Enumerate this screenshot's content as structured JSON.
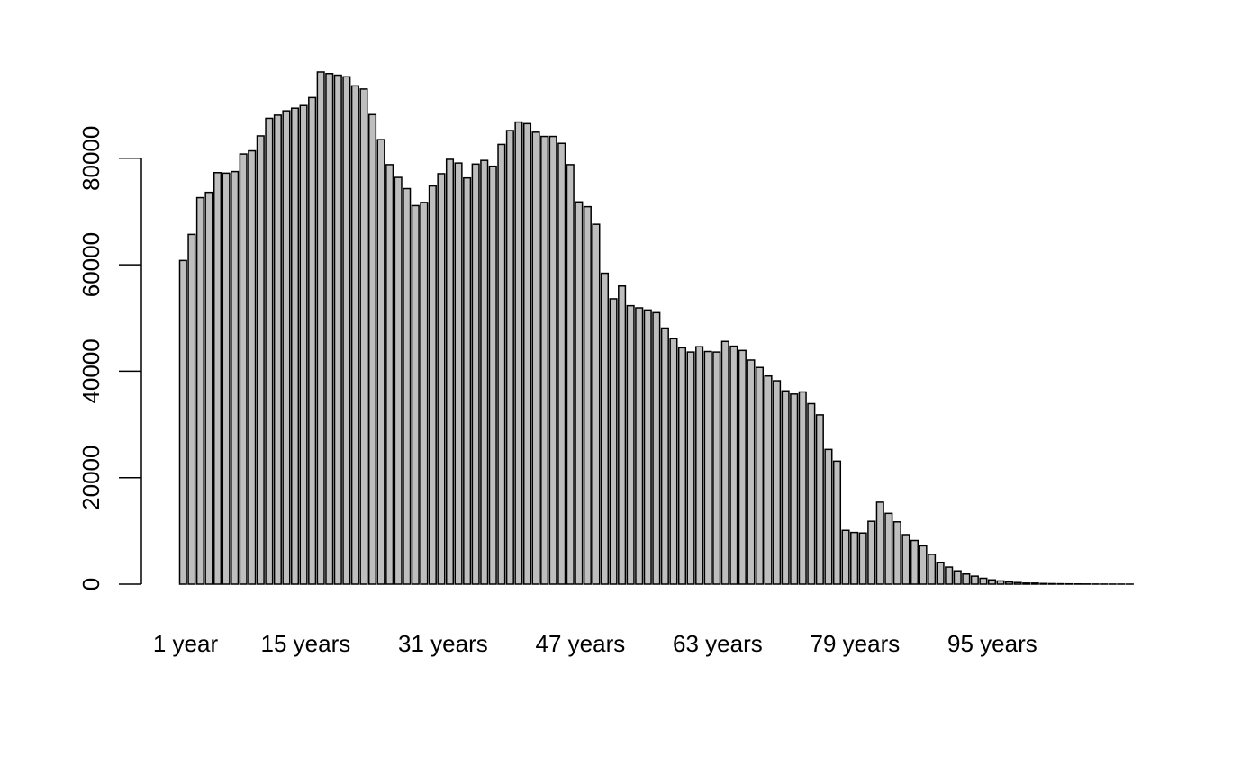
{
  "chart_data": {
    "type": "bar",
    "title": "",
    "xlabel": "",
    "ylabel": "",
    "ylim": [
      0,
      96000
    ],
    "y_ticks": [
      0,
      20000,
      40000,
      60000,
      80000
    ],
    "x_tick_labels": [
      "1 year",
      "15 years",
      "31 years",
      "47 years",
      "63 years",
      "79 years",
      "95 years"
    ],
    "x_tick_bar_index": [
      0,
      14,
      30,
      46,
      62,
      78,
      94
    ],
    "values": [
      60800,
      65700,
      72600,
      73600,
      77300,
      77200,
      77500,
      80800,
      81400,
      84200,
      87500,
      88100,
      88900,
      89400,
      89900,
      91400,
      96200,
      95900,
      95600,
      95300,
      93600,
      93000,
      88200,
      83500,
      78800,
      76400,
      74300,
      71100,
      71700,
      74800,
      77100,
      79800,
      79100,
      76300,
      78900,
      79600,
      78500,
      82600,
      85200,
      86800,
      86500,
      84900,
      84100,
      84100,
      82800,
      78800,
      71800,
      70900,
      67600,
      58400,
      53600,
      56000,
      52300,
      51900,
      51500,
      51000,
      48100,
      46100,
      44400,
      43600,
      44600,
      43700,
      43600,
      45600,
      44700,
      43900,
      42100,
      40700,
      39100,
      38200,
      36300,
      35700,
      36100,
      33900,
      31800,
      25300,
      23100,
      10100,
      9700,
      9600,
      11800,
      15400,
      13300,
      11700,
      9300,
      8200,
      7200,
      5600,
      4100,
      3200,
      2500,
      1900,
      1500,
      1100,
      800,
      600,
      400,
      300,
      200,
      200,
      120,
      90,
      70,
      50,
      40,
      30,
      20,
      15,
      10,
      8,
      5
    ],
    "colors": {
      "bar_fill": "#bebebe",
      "bar_stroke": "#000000"
    },
    "grid": false
  }
}
